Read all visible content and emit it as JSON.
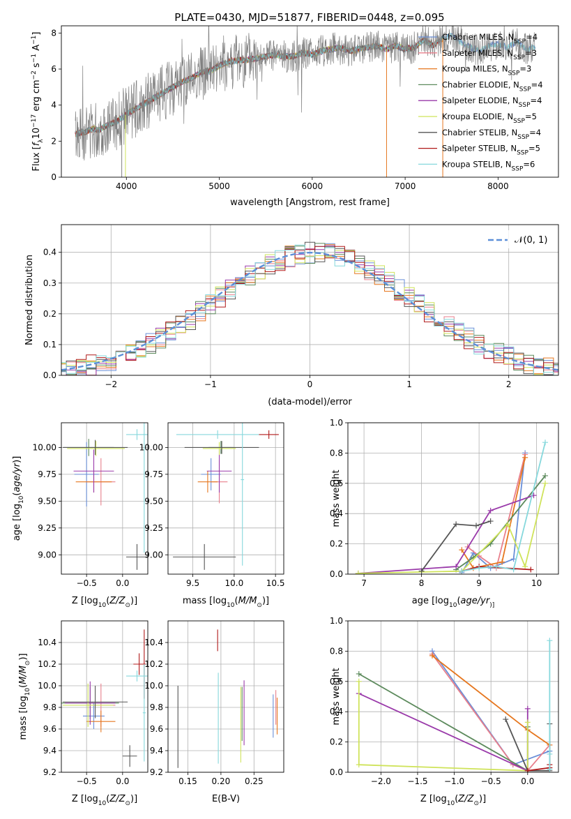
{
  "figure": {
    "title": "PLATE=0430, MJD=51877, FIBERID=0448, z=0.095"
  },
  "colors": {
    "Chabrier MILES": "#6a8fd8",
    "Salpeter MILES": "#e87f8c",
    "Kroupa MILES": "#e6771f",
    "Chabrier ELODIE": "#5c8a5c",
    "Salpeter ELODIE": "#9a3aaa",
    "Kroupa ELODIE": "#cfe35a",
    "Chabrier STELIB": "#555555",
    "Salpeter STELIB": "#b01818",
    "Kroupa STELIB": "#86d8dc",
    "data": "#808080",
    "gaussian": "#5b8fd8"
  },
  "chart_data": [
    {
      "id": "spectrum",
      "type": "line",
      "xlabel": "wavelength [Angstrom, rest frame]",
      "ylabel_parts": [
        "Flux [",
        "f",
        "λ",
        "10",
        "−17",
        " erg cm",
        "−2",
        " s",
        "−1",
        " A",
        "−1",
        "]"
      ],
      "xlim": [
        3300,
        8650
      ],
      "ylim": [
        0,
        8.4
      ],
      "xticks": [
        "4000",
        "5000",
        "6000",
        "7000",
        "8000"
      ],
      "xtick_values": [
        4000,
        5000,
        6000,
        7000,
        8000
      ],
      "yticks": [
        "0",
        "2",
        "4",
        "6",
        "8"
      ],
      "ytick_values": [
        0,
        2,
        4,
        6,
        8
      ],
      "grid": false,
      "legend_position": "top-right",
      "legend": [
        {
          "label": "Chabrier MILES",
          "nssp": "4"
        },
        {
          "label": "Salpeter MILES",
          "nssp": "3"
        },
        {
          "label": "Kroupa MILES",
          "nssp": "3"
        },
        {
          "label": "Chabrier ELODIE",
          "nssp": "4"
        },
        {
          "label": "Salpeter ELODIE",
          "nssp": "4"
        },
        {
          "label": "Kroupa ELODIE",
          "nssp": "5"
        },
        {
          "label": "Chabrier STELIB",
          "nssp": "4"
        },
        {
          "label": "Salpeter STELIB",
          "nssp": "5"
        },
        {
          "label": "Kroupa STELIB",
          "nssp": "6"
        }
      ],
      "continuum": {
        "x": [
          3450,
          3550,
          3650,
          3700,
          3800,
          3900,
          4000,
          4100,
          4200,
          4300,
          4400,
          4500,
          4600,
          4700,
          4800,
          4900,
          5000,
          5100,
          5200,
          5300,
          5400,
          5500,
          5600,
          5700,
          5800,
          5900,
          6000,
          6100,
          6200,
          6300,
          6400,
          6500,
          6600,
          6700,
          6800,
          6900,
          7000,
          7100,
          7200,
          7300,
          7400,
          7500,
          7600,
          7700,
          7800,
          7900,
          8000,
          8100,
          8200,
          8300,
          8400
        ],
        "y": [
          2.4,
          2.5,
          2.7,
          2.6,
          2.9,
          3.1,
          3.5,
          3.8,
          4.1,
          4.4,
          4.7,
          5.0,
          5.3,
          5.5,
          5.8,
          5.9,
          6.2,
          6.4,
          6.5,
          6.5,
          6.6,
          6.7,
          6.8,
          6.7,
          6.7,
          6.9,
          6.8,
          7.0,
          7.1,
          7.2,
          7.0,
          7.1,
          7.2,
          7.3,
          7.1,
          7.3,
          7.1,
          7.2,
          7.6,
          7.3,
          7.7,
          7.9,
          7.5,
          7.2,
          7.0,
          7.3,
          7.4,
          7.2,
          7.5,
          7.1,
          7.2
        ]
      }
    },
    {
      "id": "residuals",
      "type": "line",
      "xlabel": "(data-model)/error",
      "ylabel": "Normed distribution",
      "xlim": [
        -2.5,
        2.5
      ],
      "ylim": [
        0,
        0.49
      ],
      "xticks": [
        "−2",
        "−1",
        "0",
        "1",
        "2"
      ],
      "xtick_values": [
        -2,
        -1,
        0,
        1,
        2
      ],
      "yticks": [
        "0.0",
        "0.1",
        "0.2",
        "0.3",
        "0.4"
      ],
      "ytick_values": [
        0,
        0.1,
        0.2,
        0.3,
        0.4
      ],
      "grid": true,
      "legend_position": "top-right",
      "gaussian_label": "𝒩(0, 1)",
      "bin_width": 0.1
    },
    {
      "id": "age_vs_Z",
      "type": "scatter",
      "xlabel_parts": [
        "Z [log",
        "10",
        "(",
        "Z/Z",
        "⊙",
        ")]"
      ],
      "ylabel_parts": [
        "age  [log",
        "10",
        "(",
        "age/yr",
        ")]"
      ],
      "xlim": [
        -0.85,
        0.35
      ],
      "ylim": [
        8.82,
        10.23
      ],
      "xticks": [
        "−0.5",
        "0.0"
      ],
      "xtick_values": [
        -0.5,
        0.0
      ],
      "yticks": [
        "9.00",
        "9.25",
        "9.50",
        "9.75",
        "10.00"
      ],
      "ytick_values": [
        9.0,
        9.25,
        9.5,
        9.75,
        10.0
      ],
      "grid": true,
      "crosses": [
        {
          "series": "Chabrier MILES",
          "x": -0.5,
          "xerr": 0.17,
          "y": 9.75,
          "yerr": 0.3
        },
        {
          "series": "Salpeter MILES",
          "x": -0.3,
          "xerr": 0.2,
          "y": 9.68,
          "yerr": 0.22
        },
        {
          "series": "Kroupa MILES",
          "x": -0.4,
          "xerr": 0.25,
          "y": 9.68,
          "yerr": 0.1
        },
        {
          "series": "Chabrier ELODIE",
          "x": -0.47,
          "xerr": 0.35,
          "y": 10.0,
          "yerr": 0.08
        },
        {
          "series": "Salpeter ELODIE",
          "x": -0.4,
          "xerr": 0.28,
          "y": 9.78,
          "yerr": 0.2
        },
        {
          "series": "Kroupa ELODIE",
          "x": -0.37,
          "xerr": 0.4,
          "y": 9.99,
          "yerr": 0.07
        },
        {
          "series": "Chabrier STELIB",
          "x": -0.38,
          "xerr": 0.45,
          "y": 10.0,
          "yerr": 0.07
        },
        {
          "series": "Chabrier STELIB",
          "x": 0.2,
          "xerr": 0.15,
          "y": 8.98,
          "yerr": 0.12
        },
        {
          "series": "Kroupa STELIB",
          "x": 0.2,
          "xerr": 0.15,
          "y": 10.12,
          "yerr": 0.05
        },
        {
          "series": "Kroupa STELIB",
          "x": 0.3,
          "xerr": 0.02,
          "y": 10.12,
          "yerr": 1.1
        }
      ]
    },
    {
      "id": "age_vs_mass",
      "type": "scatter",
      "xlabel_parts": [
        "mass [log",
        "10",
        "(",
        "M/M",
        "⊙",
        ")]"
      ],
      "xlim": [
        9.2,
        10.6
      ],
      "ylim": [
        8.82,
        10.23
      ],
      "xticks": [
        "9.5",
        "10.0",
        "10.5"
      ],
      "xtick_values": [
        9.5,
        10.0,
        10.5
      ],
      "yticks": [
        "9.00",
        "9.25",
        "9.50",
        "9.75",
        "10.00"
      ],
      "ytick_values": [
        9.0,
        9.25,
        9.5,
        9.75,
        10.0
      ],
      "grid": true,
      "crosses": [
        {
          "series": "Chabrier MILES",
          "x": 9.72,
          "xerr": 0.12,
          "y": 9.75,
          "yerr": 0.15
        },
        {
          "series": "Salpeter MILES",
          "x": 9.82,
          "xerr": 0.1,
          "y": 9.68,
          "yerr": 0.2
        },
        {
          "series": "Kroupa MILES",
          "x": 9.68,
          "xerr": 0.12,
          "y": 9.68,
          "yerr": 0.1
        },
        {
          "series": "Chabrier ELODIE",
          "x": 9.84,
          "xerr": 0.15,
          "y": 10.0,
          "yerr": 0.06
        },
        {
          "series": "Salpeter ELODIE",
          "x": 9.82,
          "xerr": 0.15,
          "y": 9.78,
          "yerr": 0.2
        },
        {
          "series": "Kroupa ELODIE",
          "x": 9.82,
          "xerr": 0.2,
          "y": 9.99,
          "yerr": 0.06
        },
        {
          "series": "Chabrier STELIB",
          "x": 9.64,
          "xerr": 0.38,
          "y": 8.98,
          "yerr": 0.12
        },
        {
          "series": "Chabrier STELIB",
          "x": 9.85,
          "xerr": 0.45,
          "y": 10.0,
          "yerr": 0.06
        },
        {
          "series": "Salpeter STELIB",
          "x": 10.42,
          "xerr": 0.12,
          "y": 10.12,
          "yerr": 0.04
        },
        {
          "series": "Kroupa STELIB",
          "x": 9.8,
          "xerr": 0.5,
          "y": 10.12,
          "yerr": 0.04
        },
        {
          "series": "Kroupa STELIB",
          "x": 10.1,
          "xerr": 0.02,
          "y": 9.7,
          "yerr": 0.8
        }
      ]
    },
    {
      "id": "massweight_vs_age",
      "type": "line",
      "xlabel_parts": [
        "age  [log",
        "10",
        "(",
        "age/yr",
        ")]"
      ],
      "ylabel": "mass weight",
      "xlim": [
        6.72,
        10.38
      ],
      "ylim": [
        0,
        1.0
      ],
      "xticks": [
        "7",
        "8",
        "9",
        "10"
      ],
      "xtick_values": [
        7,
        8,
        9,
        10
      ],
      "yticks": [
        "0.0",
        "0.2",
        "0.4",
        "0.6",
        "0.8",
        "1.0"
      ],
      "ytick_values": [
        0,
        0.2,
        0.4,
        0.6,
        0.8,
        1.0
      ],
      "grid": true,
      "series": [
        {
          "name": "Chabrier MILES",
          "x": [
            8.7,
            8.9,
            9.2,
            9.6,
            9.8
          ],
          "y": [
            0.01,
            0.14,
            0.04,
            0.1,
            0.8
          ]
        },
        {
          "name": "Salpeter MILES",
          "x": [
            8.8,
            9.0,
            9.3,
            9.8
          ],
          "y": [
            0.18,
            0.12,
            0.04,
            0.79
          ]
        },
        {
          "name": "Kroupa MILES",
          "x": [
            8.7,
            8.9,
            9.4,
            9.8
          ],
          "y": [
            0.16,
            0.04,
            0.08,
            0.77
          ]
        },
        {
          "name": "Chabrier ELODIE",
          "x": [
            8.6,
            8.9,
            9.2,
            10.15
          ],
          "y": [
            0.03,
            0.11,
            0.2,
            0.65
          ]
        },
        {
          "name": "Salpeter ELODIE",
          "x": [
            6.9,
            8.6,
            9.2,
            9.95
          ],
          "y": [
            0.005,
            0.05,
            0.42,
            0.52
          ]
        },
        {
          "name": "Kroupa ELODIE",
          "x": [
            6.9,
            8.7,
            9.5,
            9.8,
            10.15
          ],
          "y": [
            0.005,
            0.02,
            0.33,
            0.05,
            0.6
          ]
        },
        {
          "name": "Chabrier STELIB",
          "x": [
            8.0,
            8.6,
            8.95,
            9.2
          ],
          "y": [
            0.02,
            0.33,
            0.32,
            0.35
          ]
        },
        {
          "name": "Salpeter STELIB",
          "x": [
            8.7,
            9.0,
            9.9
          ],
          "y": [
            0.02,
            0.05,
            0.03
          ]
        },
        {
          "name": "Kroupa STELIB",
          "x": [
            8.7,
            9.0,
            9.3,
            9.6,
            10.15
          ],
          "y": [
            0.02,
            0.04,
            0.05,
            0.03,
            0.87
          ]
        }
      ]
    },
    {
      "id": "mass_vs_Z",
      "type": "scatter",
      "xlabel_parts": [
        "Z [log",
        "10",
        "(",
        "Z/Z",
        "⊙",
        ")]"
      ],
      "ylabel_parts": [
        "mass [log",
        "10",
        "(",
        "M/M",
        "⊙",
        ")]"
      ],
      "xlim": [
        -0.85,
        0.35
      ],
      "ylim": [
        9.2,
        10.6
      ],
      "xticks": [
        "−0.5",
        "0.0"
      ],
      "xtick_values": [
        -0.5,
        0.0
      ],
      "yticks": [
        "9.2",
        "9.4",
        "9.6",
        "9.8",
        "10.0",
        "10.2",
        "10.4"
      ],
      "ytick_values": [
        9.2,
        9.4,
        9.6,
        9.8,
        10.0,
        10.2,
        10.4
      ],
      "grid": true,
      "crosses": [
        {
          "series": "Chabrier MILES",
          "x": -0.4,
          "xerr": 0.15,
          "y": 9.72,
          "yerr": 0.12
        },
        {
          "series": "Salpeter MILES",
          "x": -0.3,
          "xerr": 0.2,
          "y": 9.82,
          "yerr": 0.2
        },
        {
          "series": "Kroupa MILES",
          "x": -0.3,
          "xerr": 0.2,
          "y": 9.67,
          "yerr": 0.1
        },
        {
          "series": "Chabrier ELODIE",
          "x": -0.45,
          "xerr": 0.4,
          "y": 9.84,
          "yerr": 0.15
        },
        {
          "series": "Salpeter ELODIE",
          "x": -0.45,
          "xerr": 0.35,
          "y": 9.84,
          "yerr": 0.2
        },
        {
          "series": "Kroupa ELODIE",
          "x": -0.48,
          "xerr": 0.35,
          "y": 9.82,
          "yerr": 0.2
        },
        {
          "series": "Chabrier STELIB",
          "x": -0.38,
          "xerr": 0.45,
          "y": 9.85,
          "yerr": 0.15
        },
        {
          "series": "Chabrier STELIB",
          "x": 0.1,
          "xerr": 0.1,
          "y": 9.35,
          "yerr": 0.1
        },
        {
          "series": "Salpeter STELIB",
          "x": 0.23,
          "xerr": 0.08,
          "y": 10.2,
          "yerr": 0.1
        },
        {
          "series": "Salpeter STELIB",
          "x": 0.3,
          "xerr": 0.02,
          "y": 10.2,
          "yerr": 0.32
        },
        {
          "series": "Kroupa STELIB",
          "x": 0.2,
          "xerr": 0.15,
          "y": 10.09,
          "yerr": 0.05
        },
        {
          "series": "Kroupa STELIB",
          "x": 0.3,
          "xerr": 0.02,
          "y": 9.75,
          "yerr": 0.45
        }
      ]
    },
    {
      "id": "mass_vs_ebv",
      "type": "scatter",
      "xlabel": "E(B-V)",
      "xlim": [
        0.12,
        0.295
      ],
      "ylim": [
        9.2,
        10.6
      ],
      "xticks": [
        "0.15",
        "0.20",
        "0.25"
      ],
      "xtick_values": [
        0.15,
        0.2,
        0.25
      ],
      "yticks": [
        "9.2",
        "9.4",
        "9.6",
        "9.8",
        "10.0",
        "10.2",
        "10.4"
      ],
      "ytick_values": [
        9.2,
        9.4,
        9.6,
        9.8,
        10.0,
        10.2,
        10.4
      ],
      "grid": true,
      "crosses": [
        {
          "series": "Chabrier STELIB",
          "x": 0.135,
          "y": 9.62,
          "yerr": 0.38
        },
        {
          "series": "Salpeter STELIB",
          "x": 0.195,
          "y": 10.42,
          "yerr": 0.1
        },
        {
          "series": "Kroupa STELIB",
          "x": 0.196,
          "y": 9.7,
          "yerr": 0.42
        },
        {
          "series": "Chabrier ELODIE",
          "x": 0.232,
          "y": 9.74,
          "yerr": 0.25
        },
        {
          "series": "Salpeter ELODIE",
          "x": 0.235,
          "y": 9.75,
          "yerr": 0.3
        },
        {
          "series": "Kroupa ELODIE",
          "x": 0.23,
          "y": 9.64,
          "yerr": 0.35
        },
        {
          "series": "Chabrier MILES",
          "x": 0.279,
          "y": 9.72,
          "yerr": 0.2
        },
        {
          "series": "Salpeter MILES",
          "x": 0.283,
          "y": 9.8,
          "yerr": 0.16
        },
        {
          "series": "Kroupa MILES",
          "x": 0.285,
          "y": 9.72,
          "yerr": 0.17
        }
      ]
    },
    {
      "id": "massweight_vs_Z",
      "type": "line",
      "xlabel_parts": [
        "Z [log",
        "10",
        "(",
        "Z/Z",
        "⊙",
        ")]"
      ],
      "ylabel": "mass weight",
      "xlim": [
        -2.45,
        0.42
      ],
      "ylim": [
        0,
        1.0
      ],
      "xticks": [
        "−2.0",
        "−1.5",
        "−1.0",
        "−0.5",
        "0.0"
      ],
      "xtick_values": [
        -2.0,
        -1.5,
        -1.0,
        -0.5,
        0.0
      ],
      "yticks": [
        "0.0",
        "0.2",
        "0.4",
        "0.6",
        "0.8",
        "1.0"
      ],
      "ytick_values": [
        0,
        0.2,
        0.4,
        0.6,
        0.8,
        1.0
      ],
      "grid": true,
      "series": [
        {
          "name": "Chabrier MILES",
          "x": [
            -1.3,
            -0.2,
            0.3
          ],
          "y": [
            0.8,
            0.05,
            0.14
          ]
        },
        {
          "name": "Salpeter MILES",
          "x": [
            -1.3,
            -0.2,
            0.0,
            0.3
          ],
          "y": [
            0.78,
            0.05,
            0.01,
            0.18
          ]
        },
        {
          "name": "Kroupa MILES",
          "x": [
            -1.3,
            0.0,
            0.3
          ],
          "y": [
            0.77,
            0.28,
            0.18
          ]
        },
        {
          "name": "Chabrier ELODIE",
          "x": [
            -2.3,
            0.0,
            0.0
          ],
          "y": [
            0.65,
            0.01,
            0.3
          ]
        },
        {
          "name": "Salpeter ELODIE",
          "x": [
            -2.3,
            0.0,
            0.0
          ],
          "y": [
            0.52,
            0.01,
            0.42
          ]
        },
        {
          "name": "Kroupa ELODIE",
          "x": [
            -2.3,
            -2.3,
            0.0,
            0.0
          ],
          "y": [
            0.6,
            0.05,
            0.01,
            0.33
          ]
        },
        {
          "name": "Chabrier STELIB",
          "x": [
            -0.3,
            0.0,
            0.3,
            0.3
          ],
          "y": [
            0.35,
            0.01,
            0.01,
            0.32
          ]
        },
        {
          "name": "Salpeter STELIB",
          "x": [
            0.0,
            0.3,
            0.3
          ],
          "y": [
            0.01,
            0.03,
            0.05
          ]
        },
        {
          "name": "Kroupa STELIB",
          "x": [
            0.3,
            0.3,
            0.3
          ],
          "y": [
            0.02,
            0.12,
            0.87
          ]
        }
      ]
    }
  ]
}
